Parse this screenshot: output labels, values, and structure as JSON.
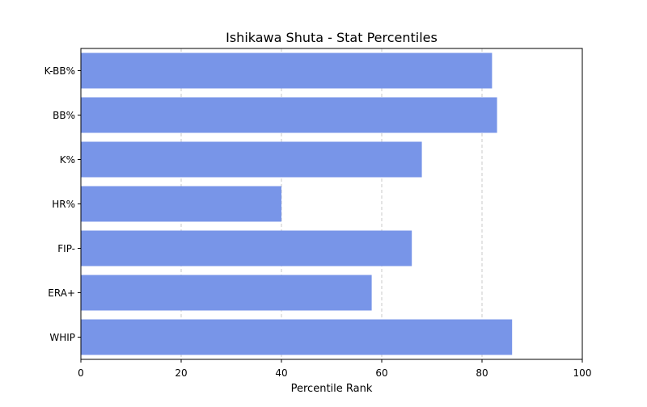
{
  "chart_data": {
    "type": "bar",
    "orientation": "horizontal",
    "title": "Ishikawa Shuta - Stat Percentiles",
    "xlabel": "Percentile Rank",
    "ylabel": "",
    "categories": [
      "K-BB%",
      "BB%",
      "K%",
      "HR%",
      "FIP-",
      "ERA+",
      "WHIP"
    ],
    "values": [
      82,
      83,
      68,
      40,
      66,
      58,
      86
    ],
    "xlim": [
      0,
      100
    ],
    "xticks": [
      0,
      20,
      40,
      60,
      80,
      100
    ],
    "grid": "x-axis dashed",
    "bar_color": "#7895e8",
    "grid_color": "#c8c8c8"
  }
}
